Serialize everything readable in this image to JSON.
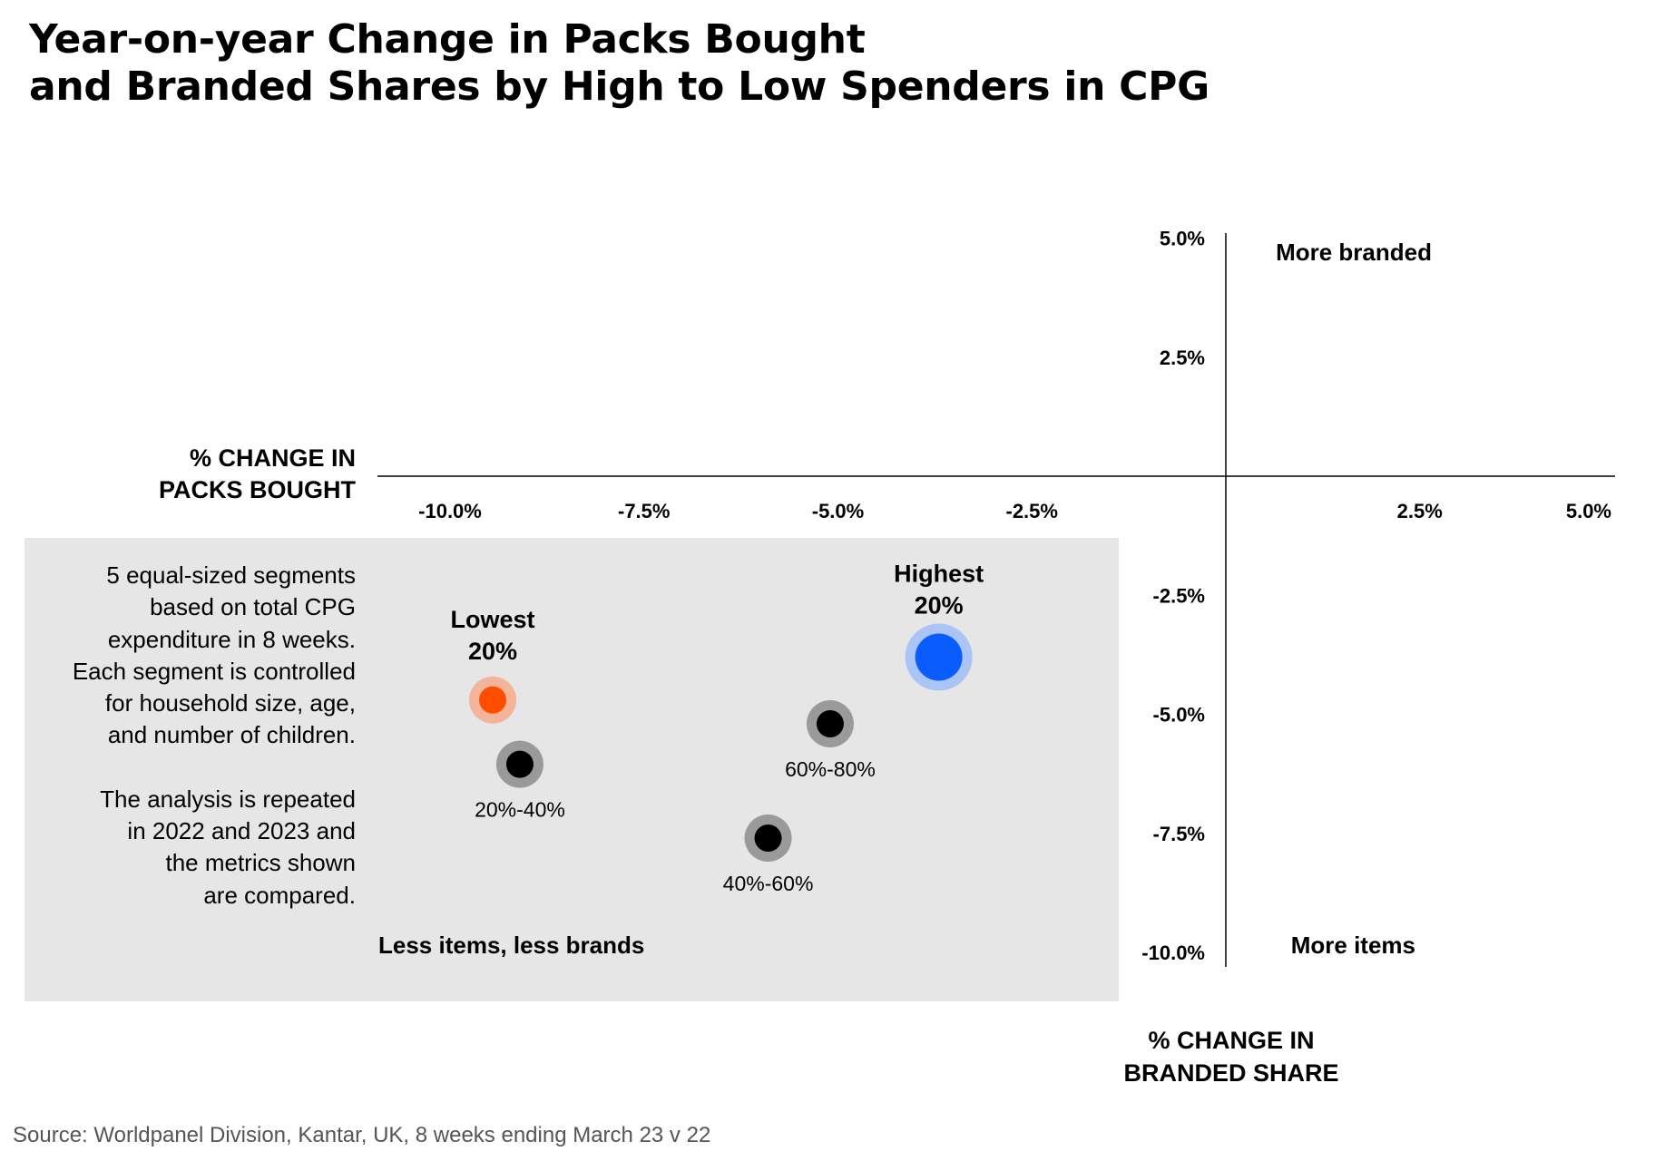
{
  "title": {
    "line1": "Year-on-year Change in Packs Bought",
    "line2": "and Branded Shares by High to Low Spenders in CPG"
  },
  "axis_labels": {
    "packs_line1": "% CHANGE IN",
    "packs_line2": "PACKS BOUGHT",
    "branded_line1": "% CHANGE IN",
    "branded_line2": "BRANDED SHARE"
  },
  "quadrant_labels": {
    "top_right": "More branded",
    "bottom_right": "More items",
    "bottom_left": "Less items, less brands"
  },
  "note": {
    "paragraph1": [
      "5 equal-sized segments",
      "based on total CPG",
      "expenditure in 8 weeks.",
      "Each segment is controlled",
      "for household size, age,",
      "and number of children."
    ],
    "paragraph2": [
      "The analysis is repeated",
      "in 2022 and 2023 and",
      "the metrics shown",
      "are compared."
    ]
  },
  "source": "Source: Worldpanel Division, Kantar, UK, 8 weeks ending March 23 v 22",
  "colors": {
    "highest": "#0a5cff",
    "highest_halo": "#a9c4f5",
    "lowest": "#ff4d00",
    "lowest_halo": "#f4b49a",
    "middle": "#000000",
    "middle_halo": "#9a9a9a",
    "shade": "#e6e6e6"
  },
  "chart_data": {
    "type": "scatter",
    "title": "Year-on-year Change in Packs Bought and Branded Shares by High to Low Spenders in CPG",
    "xlabel": "% CHANGE IN PACKS BOUGHT",
    "ylabel": "% CHANGE IN BRANDED SHARE",
    "xlim": [
      -11,
      5
    ],
    "ylim": [
      -10.3,
      5.2
    ],
    "x_ticks": [
      -10.0,
      -7.5,
      -5.0,
      -2.5,
      2.5,
      5.0
    ],
    "x_tick_labels": [
      "-10.0%",
      "-7.5%",
      "-5.0%",
      "-2.5%",
      "2.5%",
      "5.0%"
    ],
    "y_ticks": [
      5.0,
      2.5,
      -2.5,
      -5.0,
      -7.5,
      -10.0
    ],
    "y_tick_labels": [
      "5.0%",
      "2.5%",
      "-2.5%",
      "-5.0%",
      "-7.5%",
      "-10.0%"
    ],
    "grid": false,
    "points": [
      {
        "label_line1": "Lowest",
        "label_line2": "20%",
        "x": -9.45,
        "y": -4.7,
        "color_key": "lowest",
        "size": "medium",
        "label_position": "above"
      },
      {
        "label_line1": "20%-40%",
        "label_line2": "",
        "x": -9.1,
        "y": -6.05,
        "color_key": "middle",
        "size": "medium",
        "label_position": "below"
      },
      {
        "label_line1": "40%-60%",
        "label_line2": "",
        "x": -5.9,
        "y": -7.6,
        "color_key": "middle",
        "size": "medium",
        "label_position": "below"
      },
      {
        "label_line1": "60%-80%",
        "label_line2": "",
        "x": -5.1,
        "y": -5.2,
        "color_key": "middle",
        "size": "medium",
        "label_position": "below"
      },
      {
        "label_line1": "Highest",
        "label_line2": "20%",
        "x": -3.7,
        "y": -3.8,
        "color_key": "highest",
        "size": "large",
        "label_position": "above"
      }
    ]
  }
}
